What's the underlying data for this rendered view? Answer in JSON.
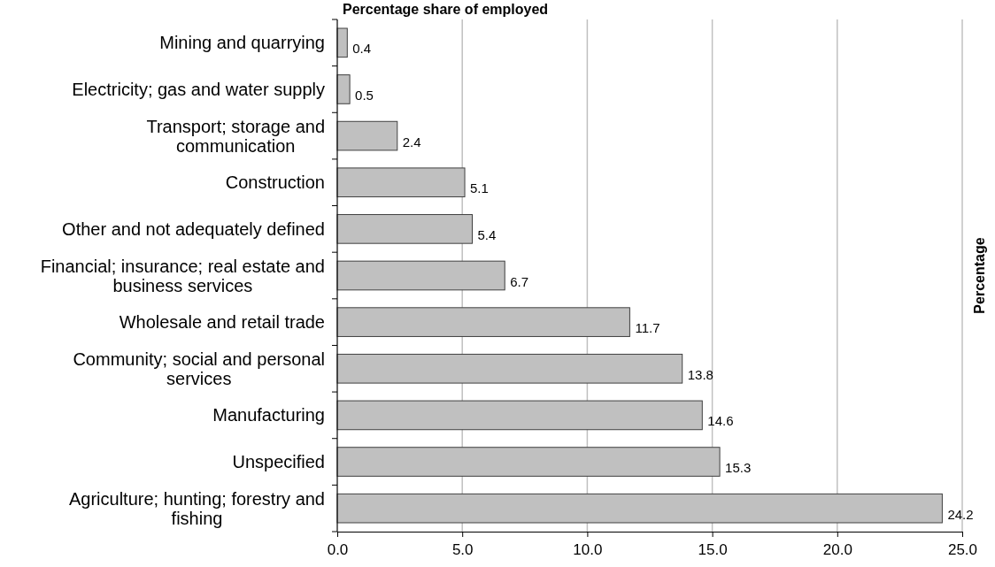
{
  "chart_data": {
    "type": "bar",
    "orientation": "horizontal",
    "title": "Percentage share of employed",
    "y2label": "Percentage",
    "categories": [
      "Mining and quarrying",
      "Electricity; gas and water supply",
      "Transport; storage and communication",
      "Construction",
      "Other and not adequately defined",
      "Financial; insurance; real estate and business services",
      "Wholesale and retail trade",
      "Community; social and personal services",
      "Manufacturing",
      "Unspecified",
      "Agriculture; hunting; forestry and fishing"
    ],
    "values": [
      0.4,
      0.5,
      2.4,
      5.1,
      5.4,
      6.7,
      11.7,
      13.8,
      14.6,
      15.3,
      24.2
    ],
    "color": "#c0c0c0",
    "xlim": [
      0,
      25
    ],
    "xticks": [
      {
        "value": 0,
        "label": "0.0"
      },
      {
        "value": 5,
        "label": "5.0"
      },
      {
        "value": 10,
        "label": "10.0"
      },
      {
        "value": 15,
        "label": "15.0"
      },
      {
        "value": 20,
        "label": "20.0"
      },
      {
        "value": 25,
        "label": "25.0"
      }
    ],
    "grid": "x",
    "data_labels": true
  }
}
